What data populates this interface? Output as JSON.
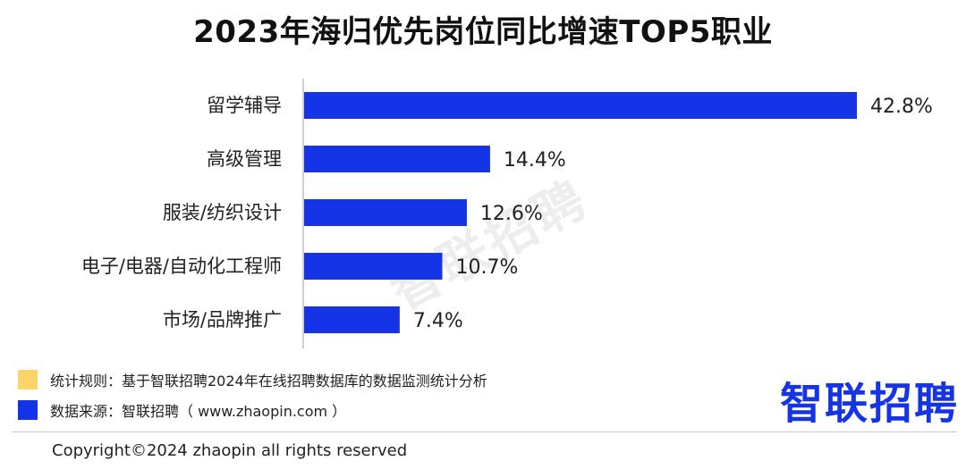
{
  "title": "2023年海归优先岗位同比增速TOP5职业",
  "watermark": "智联招聘",
  "chart_data": {
    "type": "bar",
    "orientation": "horizontal",
    "title": "2023年海归优先岗位同比增速TOP5职业",
    "categories": [
      "留学辅导",
      "高级管理",
      "服装/纺织设计",
      "电子/电器/自动化工程师",
      "市场/品牌推广"
    ],
    "values": [
      42.8,
      14.4,
      12.6,
      10.7,
      7.4
    ],
    "value_labels": [
      "42.8%",
      "14.4%",
      "12.6%",
      "10.7%",
      "7.4%"
    ],
    "bar_color": "#1434e6",
    "xlim": [
      0,
      42.8
    ]
  },
  "legend": {
    "items": [
      {
        "color": "#fdd46a",
        "text": "统计规则：基于智联招聘2024年在线招聘数据库的数据监测统计分析"
      },
      {
        "color": "#1434e6",
        "text": "数据来源：智联招聘（ www.zhaopin.com ）"
      }
    ]
  },
  "logo": {
    "text": "智联招聘",
    "color": "#1434e6"
  },
  "copyright": "Copyright©2024 zhaopin all rights reserved"
}
